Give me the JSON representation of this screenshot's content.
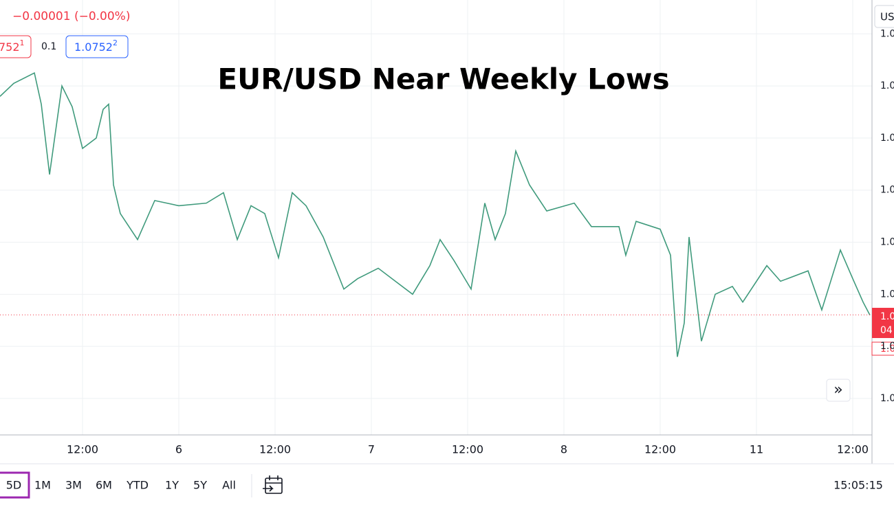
{
  "header": {
    "change": "−0.00001 (−0.00%)",
    "bid": "752",
    "bid_sup": "1",
    "spread": "0.1",
    "ask": "1.0752",
    "ask_sup": "2"
  },
  "chart_data": {
    "type": "line",
    "title": "EUR/USD Near Weekly Lows",
    "x": [
      1.71,
      3.43,
      6.0,
      6.86,
      7.89,
      9.43,
      10.71,
      12.0,
      13.71,
      14.57,
      15.26,
      15.86,
      16.71,
      18.86,
      21.0,
      24.0,
      27.43,
      29.57,
      31.29,
      33.0,
      34.71,
      36.43,
      38.14,
      39.86,
      42.0,
      44.57,
      46.29,
      48.86,
      51.0,
      53.14,
      55.29,
      56.57,
      58.29,
      60.43,
      62.14,
      63.43,
      64.71,
      66.0,
      67.71,
      69.86,
      73.29,
      75.43,
      78.86,
      79.71,
      81.0,
      84.0,
      85.29,
      86.14,
      87.0,
      87.6,
      89.14,
      90.86,
      93.0,
      94.29,
      97.29,
      99.0,
      102.43,
      104.14,
      106.46,
      108.0,
      109.29,
      110.14
    ],
    "series": [
      {
        "name": "EUR/USD",
        "color": "#3f9a7c",
        "values": [
          1.0836,
          1.0841,
          1.0845,
          1.0833,
          1.0806,
          1.084,
          1.0832,
          1.0816,
          1.082,
          1.0831,
          1.0833,
          1.0802,
          1.0791,
          1.0781,
          1.0796,
          1.0794,
          1.0795,
          1.0799,
          1.0781,
          1.0794,
          1.0791,
          1.0774,
          1.0799,
          1.0794,
          1.0782,
          1.0762,
          1.0766,
          1.077,
          1.0765,
          1.076,
          1.0771,
          1.0781,
          1.0773,
          1.0762,
          1.0795,
          1.0781,
          1.0791,
          1.0815,
          1.0802,
          1.0792,
          1.0795,
          1.0786,
          1.0786,
          1.0775,
          1.0788,
          1.0785,
          1.0775,
          1.0736,
          1.0749,
          1.0782,
          1.0742,
          1.076,
          1.0763,
          1.0757,
          1.0771,
          1.0765,
          1.0769,
          1.0754,
          1.0777,
          1.0766,
          1.0757,
          1.0752
        ]
      }
    ],
    "last_price": 1.07521,
    "last_price_color": "#f23645",
    "xlim": [
      1.714,
      110.4
    ],
    "ylim": [
      1.0706,
      1.0873
    ],
    "xticks": [
      {
        "value": 12,
        "label": "12:00"
      },
      {
        "value": 24,
        "label": "6"
      },
      {
        "value": 36,
        "label": "12:00"
      },
      {
        "value": 48,
        "label": "7"
      },
      {
        "value": 60,
        "label": "12:00"
      },
      {
        "value": 72,
        "label": "8"
      },
      {
        "value": 84,
        "label": "12:00"
      },
      {
        "value": 96,
        "label": "11"
      },
      {
        "value": 108,
        "label": "12:00"
      }
    ],
    "yticks": [
      {
        "value": 1.086,
        "label": "1.0"
      },
      {
        "value": 1.084,
        "label": "1.0"
      },
      {
        "value": 1.082,
        "label": "1.0"
      },
      {
        "value": 1.08,
        "label": "1.0"
      },
      {
        "value": 1.078,
        "label": "1.0"
      },
      {
        "value": 1.076,
        "label": "1.0"
      },
      {
        "value": 1.074,
        "label": "1.0"
      },
      {
        "value": 1.072,
        "label": "1.0"
      }
    ],
    "grid": true
  },
  "price_axis": {
    "currency": "US",
    "tag_price": "1.0",
    "tag_countdown": "04",
    "tag_low": "1.0"
  },
  "scroll_button": "»",
  "footer": {
    "ranges": [
      "5D",
      "1M",
      "3M",
      "6M",
      "YTD",
      "1Y",
      "5Y",
      "All"
    ],
    "clock": "15:05:15"
  }
}
